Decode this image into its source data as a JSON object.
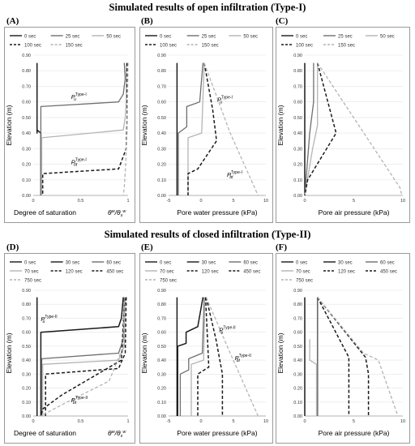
{
  "titles": {
    "top": "Simulated results of open infiltration (Type-I)",
    "bottom": "Simulated results of closed infiltration (Type-II)"
  },
  "colors": {
    "dark": "#1a1a1a",
    "mid": "#6e6e6e",
    "light": "#b4b4b4",
    "axis": "#9a9a9a",
    "grid": "#e4e4e4"
  },
  "chart_data": [
    {
      "id": "A",
      "type": "line",
      "tag": "(A)",
      "xlabel": "Degree of saturation",
      "xlabel2": "θ^w / θ_s^w",
      "ylabel": "Elevation (m)",
      "xlim": [
        0,
        1
      ],
      "ylim": [
        0,
        0.9
      ],
      "xticks": [
        0,
        0.5,
        1
      ],
      "xtick_labels": [
        "0",
        "0.5",
        "1"
      ],
      "yticks": [
        0,
        0.1,
        0.2,
        0.3,
        0.4,
        0.5,
        0.6,
        0.7,
        0.8,
        0.9
      ],
      "ytick_labels": [
        "0.00",
        "0.10",
        "0.20",
        "0.30",
        "0.40",
        "0.50",
        "0.60",
        "0.70",
        "0.80",
        "0.90"
      ],
      "series": [
        {
          "name": "0 sec",
          "color": "dark",
          "dash": "solid",
          "x": [
            0.04,
            0.04,
            0.04,
            0.08,
            0.08
          ],
          "y": [
            0.85,
            0.4,
            0.42,
            0.4,
            0
          ]
        },
        {
          "name": "25 sec",
          "color": "mid",
          "dash": "solid",
          "x": [
            0.96,
            0.97,
            0.95,
            0.9,
            0.08,
            0.08,
            0.08
          ],
          "y": [
            0.85,
            0.75,
            0.65,
            0.6,
            0.57,
            0.4,
            0
          ]
        },
        {
          "name": "50 sec",
          "color": "light",
          "dash": "solid",
          "x": [
            0.98,
            0.98,
            0.97,
            0.95,
            0.09,
            0.09,
            0.09
          ],
          "y": [
            0.85,
            0.6,
            0.5,
            0.42,
            0.37,
            0.35,
            0
          ]
        },
        {
          "name": "100 sec",
          "color": "dark",
          "dash": "dashed",
          "x": [
            0.99,
            0.99,
            0.98,
            0.9,
            0.1,
            0.1
          ],
          "y": [
            0.85,
            0.5,
            0.3,
            0.17,
            0.14,
            0
          ]
        },
        {
          "name": "150 sec",
          "color": "light",
          "dash": "dashed",
          "x": [
            1,
            0.99,
            0.97,
            0.96,
            0.95
          ],
          "y": [
            0.85,
            0.4,
            0.15,
            0.05,
            0
          ]
        }
      ],
      "annotations": [
        {
          "text": "P",
          "sub": "u",
          "sup": "Type-I",
          "x": 0.4,
          "y": 0.62
        },
        {
          "text": "P",
          "sub": "bt",
          "sup": "Type-I",
          "x": 0.4,
          "y": 0.2
        }
      ]
    },
    {
      "id": "B",
      "type": "line",
      "tag": "(B)",
      "xlabel": "Pore water pressure (kPa)",
      "ylabel": "Elevation (m)",
      "xlim": [
        -5,
        10
      ],
      "ylim": [
        0,
        0.9
      ],
      "xticks": [
        -5,
        0,
        5,
        10
      ],
      "xtick_labels": [
        "-5",
        "0",
        "5",
        "10"
      ],
      "yticks": [
        0,
        0.1,
        0.2,
        0.3,
        0.4,
        0.5,
        0.6,
        0.7,
        0.8,
        0.9
      ],
      "ytick_labels": [
        "0.00",
        "0.10",
        "0.20",
        "0.30",
        "0.40",
        "0.50",
        "0.60",
        "0.70",
        "0.80",
        "0.90"
      ],
      "series": [
        {
          "name": "0 sec",
          "color": "dark",
          "dash": "solid",
          "x": [
            -3.7,
            -3.7
          ],
          "y": [
            0.85,
            0
          ]
        },
        {
          "name": "25 sec",
          "color": "mid",
          "dash": "solid",
          "x": [
            0.3,
            -0.2,
            -2.2,
            -2.2,
            -3.5,
            -3.5
          ],
          "y": [
            0.85,
            0.6,
            0.57,
            0.44,
            0.4,
            0
          ]
        },
        {
          "name": "50 sec",
          "color": "light",
          "dash": "solid",
          "x": [
            0.5,
            0.1,
            -2.0,
            -2.0
          ],
          "y": [
            0.85,
            0.4,
            0.37,
            0
          ]
        },
        {
          "name": "100 sec",
          "color": "dark",
          "dash": "dashed",
          "x": [
            0.5,
            1.8,
            2.4,
            -0.5,
            -2.0,
            -2.0
          ],
          "y": [
            0.85,
            0.55,
            0.35,
            0.17,
            0.14,
            0
          ]
        },
        {
          "name": "150 sec",
          "color": "light",
          "dash": "dashed",
          "x": [
            0.5,
            4.5,
            8.8
          ],
          "y": [
            0.85,
            0.4,
            0
          ]
        }
      ],
      "annotations": [
        {
          "text": "P",
          "sub": "u",
          "sup": "Type-I",
          "x": 2.5,
          "y": 0.6
        },
        {
          "text": "P",
          "sub": "bt",
          "sup": "Type-I",
          "x": 4.0,
          "y": 0.12
        }
      ]
    },
    {
      "id": "C",
      "type": "line",
      "tag": "(C)",
      "xlabel": "Pore air pressure (kPa)",
      "ylabel": "Elevation (m)",
      "xlim": [
        0,
        10
      ],
      "ylim": [
        0,
        0.9
      ],
      "xticks": [
        0,
        5,
        10
      ],
      "xtick_labels": [
        "0",
        "5",
        "10"
      ],
      "yticks": [
        0,
        0.1,
        0.2,
        0.3,
        0.4,
        0.5,
        0.6,
        0.7,
        0.8,
        0.9
      ],
      "ytick_labels": [
        "0.00",
        "0.10",
        "0.20",
        "0.30",
        "0.40",
        "0.50",
        "0.60",
        "0.70",
        "0.80",
        "0.90"
      ],
      "series": [
        {
          "name": "0 sec",
          "color": "dark",
          "dash": "solid",
          "x": [
            0,
            0
          ],
          "y": [
            0.85,
            0
          ]
        },
        {
          "name": "25 sec",
          "color": "mid",
          "dash": "solid",
          "x": [
            0.9,
            0.9,
            0.5,
            0
          ],
          "y": [
            0.85,
            0.6,
            0.4,
            0
          ]
        },
        {
          "name": "50 sec",
          "color": "light",
          "dash": "solid",
          "x": [
            1.3,
            1.3,
            0.8,
            0
          ],
          "y": [
            0.85,
            0.45,
            0.3,
            0
          ]
        },
        {
          "name": "100 sec",
          "color": "dark",
          "dash": "dashed",
          "x": [
            1.3,
            3.2,
            0.3,
            0
          ],
          "y": [
            0.85,
            0.4,
            0.1,
            0
          ]
        },
        {
          "name": "150 sec",
          "color": "light",
          "dash": "dashed",
          "x": [
            1.3,
            9.7,
            9.9
          ],
          "y": [
            0.85,
            0.05,
            0
          ]
        }
      ]
    },
    {
      "id": "D",
      "type": "line",
      "tag": "(D)",
      "xlabel": "Degree of saturation",
      "xlabel2": "θ^w / θ_s^w",
      "ylabel": "Elevation (m)",
      "xlim": [
        0,
        1
      ],
      "ylim": [
        0,
        0.9
      ],
      "xticks": [
        0,
        0.5,
        1
      ],
      "xtick_labels": [
        "0",
        "0.5",
        "1"
      ],
      "yticks": [
        0,
        0.1,
        0.2,
        0.3,
        0.4,
        0.5,
        0.6,
        0.7,
        0.8,
        0.9
      ],
      "ytick_labels": [
        "0.00",
        "0.10",
        "0.20",
        "0.30",
        "0.40",
        "0.50",
        "0.60",
        "0.70",
        "0.80",
        "0.90"
      ],
      "series": [
        {
          "name": "0 sec",
          "color": "dark",
          "dash": "solid",
          "x": [
            0.04,
            0.04
          ],
          "y": [
            0.85,
            0
          ]
        },
        {
          "name": "30 sec",
          "color": "dark",
          "dash": "solid",
          "x": [
            0.95,
            0.93,
            0.9,
            0.08,
            0.08
          ],
          "y": [
            0.85,
            0.7,
            0.64,
            0.6,
            0
          ]
        },
        {
          "name": "60 sec",
          "color": "mid",
          "dash": "solid",
          "x": [
            0.96,
            0.95,
            0.9,
            0.09,
            0.09
          ],
          "y": [
            0.85,
            0.55,
            0.45,
            0.41,
            0
          ]
        },
        {
          "name": "70 sec",
          "color": "light",
          "dash": "solid",
          "x": [
            0.97,
            0.96,
            0.9,
            0.1,
            0.1
          ],
          "y": [
            0.85,
            0.5,
            0.4,
            0.37,
            0
          ]
        },
        {
          "name": "120 sec",
          "color": "dark",
          "dash": "dashed",
          "x": [
            0.98,
            0.97,
            0.9,
            0.13,
            0.13
          ],
          "y": [
            0.85,
            0.45,
            0.34,
            0.3,
            0
          ]
        },
        {
          "name": "450 sec",
          "color": "dark",
          "dash": "dashed",
          "x": [
            0.98,
            0.96,
            0.93,
            0.3,
            0.1,
            0.08
          ],
          "y": [
            0.85,
            0.8,
            0.4,
            0.15,
            0.05,
            0
          ]
        },
        {
          "name": "750 sec",
          "color": "light",
          "dash": "dashed",
          "x": [
            0.96,
            0.95,
            0.8,
            0.3,
            0.08
          ],
          "y": [
            0.82,
            0.5,
            0.25,
            0.08,
            0
          ]
        }
      ],
      "annotations": [
        {
          "text": "P",
          "sub": "u",
          "sup": "Type-II",
          "x": 0.08,
          "y": 0.68
        },
        {
          "text": "P",
          "sub": "bt",
          "sup": "Type-II",
          "x": 0.4,
          "y": 0.1
        }
      ]
    },
    {
      "id": "E",
      "type": "line",
      "tag": "(E)",
      "xlabel": "Pore water pressure (kPa)",
      "ylabel": "Elevation (m)",
      "xlim": [
        -5,
        10
      ],
      "ylim": [
        0,
        0.9
      ],
      "xticks": [
        -5,
        0,
        5,
        10
      ],
      "xtick_labels": [
        "-5",
        "0",
        "5",
        "10"
      ],
      "yticks": [
        0,
        0.1,
        0.2,
        0.3,
        0.4,
        0.5,
        0.6,
        0.7,
        0.8,
        0.9
      ],
      "ytick_labels": [
        "0.00",
        "0.10",
        "0.20",
        "0.30",
        "0.40",
        "0.50",
        "0.60",
        "0.70",
        "0.80",
        "0.90"
      ],
      "series": [
        {
          "name": "0 sec",
          "color": "dark",
          "dash": "solid",
          "x": [
            -3.7,
            -3.7
          ],
          "y": [
            0.85,
            0
          ]
        },
        {
          "name": "30 sec",
          "color": "dark",
          "dash": "solid",
          "x": [
            0.3,
            -0.5,
            -2.3,
            -2.3,
            -3.6,
            -3.6
          ],
          "y": [
            0.85,
            0.64,
            0.6,
            0.52,
            0.5,
            0
          ]
        },
        {
          "name": "60 sec",
          "color": "mid",
          "dash": "solid",
          "x": [
            0.5,
            0.2,
            -1.9,
            -1.9,
            -3.2,
            -3.2
          ],
          "y": [
            0.85,
            0.45,
            0.41,
            0.33,
            0.3,
            0
          ]
        },
        {
          "name": "70 sec",
          "color": "light",
          "dash": "solid",
          "x": [
            0.6,
            0.4,
            -1.5,
            -1.5
          ],
          "y": [
            0.85,
            0.4,
            0.37,
            0
          ]
        },
        {
          "name": "120 sec",
          "color": "dark",
          "dash": "dashed",
          "x": [
            0.7,
            1.2,
            -0.5,
            -0.5
          ],
          "y": [
            0.85,
            0.35,
            0.3,
            0
          ]
        },
        {
          "name": "450 sec",
          "color": "dark",
          "dash": "dashed",
          "x": [
            0.8,
            2.3,
            3.3,
            3.3
          ],
          "y": [
            0.85,
            0.55,
            0.3,
            0
          ]
        },
        {
          "name": "750 sec",
          "color": "light",
          "dash": "dashed",
          "x": [
            0.8,
            4.5,
            8.8
          ],
          "y": [
            0.85,
            0.45,
            0
          ]
        }
      ],
      "annotations": [
        {
          "text": "P",
          "sub": "u",
          "sup": "Type-II",
          "x": 2.8,
          "y": 0.6
        },
        {
          "text": "P",
          "sub": "bt",
          "sup": "Type-II",
          "x": 5.2,
          "y": 0.4
        }
      ]
    },
    {
      "id": "F",
      "type": "line",
      "tag": "(F)",
      "xlabel": "Pore air pressure (kPa)",
      "ylabel": "Elevation (m)",
      "xlim": [
        0,
        10
      ],
      "ylim": [
        0,
        0.9
      ],
      "xticks": [
        0,
        5,
        10
      ],
      "xtick_labels": [
        "0",
        "5",
        "10"
      ],
      "yticks": [
        0,
        0.1,
        0.2,
        0.3,
        0.4,
        0.5,
        0.6,
        0.7,
        0.8,
        0.9
      ],
      "ytick_labels": [
        "0.00",
        "0.10",
        "0.20",
        "0.30",
        "0.40",
        "0.50",
        "0.60",
        "0.70",
        "0.80",
        "0.90"
      ],
      "series": [
        {
          "name": "0 sec",
          "color": "dark",
          "dash": "solid",
          "x": [
            0,
            0
          ],
          "y": [
            0.85,
            0
          ]
        },
        {
          "name": "30 sec",
          "color": "dark",
          "dash": "solid",
          "x": [
            1.3,
            1.3,
            1.3
          ],
          "y": [
            0.85,
            0.6,
            0
          ]
        },
        {
          "name": "60 sec",
          "color": "mid",
          "dash": "solid",
          "x": [
            1.3,
            1.3,
            1.3
          ],
          "y": [
            0.85,
            0.45,
            0
          ]
        },
        {
          "name": "70 sec",
          "color": "light",
          "dash": "solid",
          "x": [
            0.5,
            0.5,
            1.2,
            1.2
          ],
          "y": [
            0.55,
            0.4,
            0.37,
            0
          ]
        },
        {
          "name": "120 sec",
          "color": "dark",
          "dash": "dashed",
          "x": [
            1.3,
            4.5,
            4.5
          ],
          "y": [
            0.85,
            0.42,
            0
          ]
        },
        {
          "name": "450 sec",
          "color": "dark",
          "dash": "dashed",
          "x": [
            1.3,
            6.2,
            6.5,
            6.5
          ],
          "y": [
            0.85,
            0.42,
            0.3,
            0
          ]
        },
        {
          "name": "750 sec",
          "color": "light",
          "dash": "dashed",
          "x": [
            1.3,
            6.0,
            7.5,
            9.5
          ],
          "y": [
            0.85,
            0.45,
            0.4,
            0
          ]
        }
      ]
    }
  ]
}
